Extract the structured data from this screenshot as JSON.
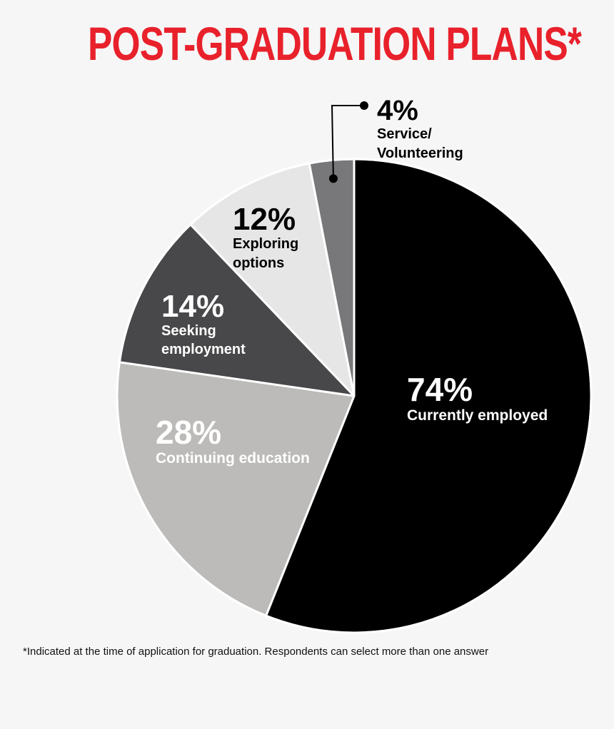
{
  "title": "POST-GRADUATION PLANS*",
  "footnote": "*Indicated at the time of application for graduation. Respondents can select more than one answer",
  "chart_data": {
    "type": "pie",
    "title": "POST-GRADUATION PLANS*",
    "slices": [
      {
        "label": "Currently employed",
        "value_label": "74%",
        "value": 74,
        "color": "#000000",
        "text_color": "#ffffff"
      },
      {
        "label": "Continuing education",
        "value_label": "28%",
        "value": 28,
        "color": "#bcbbb9",
        "text_color": "#ffffff"
      },
      {
        "label": "Seeking employment",
        "value_label": "14%",
        "value": 14,
        "color": "#48484a",
        "text_color": "#ffffff"
      },
      {
        "label": "Exploring options",
        "value_label": "12%",
        "value": 12,
        "color": "#e6e6e7",
        "text_color": "#000000"
      },
      {
        "label": "Service/ Volunteering",
        "value_label": "4%",
        "value": 4,
        "color": "#78787b",
        "text_color": "#000000"
      }
    ],
    "colors": {
      "title": "#e8212b",
      "background": "#f6f6f6",
      "separator": "#ffffff"
    }
  }
}
